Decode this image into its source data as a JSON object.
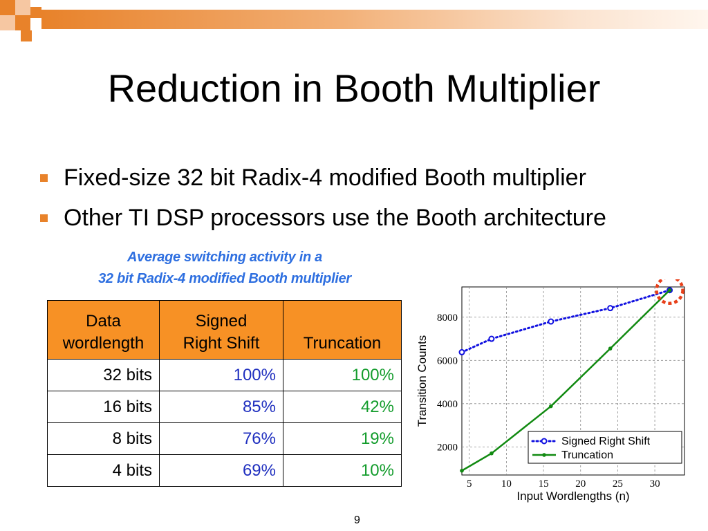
{
  "slide": {
    "title": "Reduction in Booth Multiplier",
    "bullets": [
      "Fixed-size 32 bit Radix-4 modified Booth multiplier",
      "Other TI DSP processors use the Booth architecture"
    ],
    "caption_line1": "Average switching activity in a",
    "caption_line2": "32 bit Radix-4 modified Booth multiplier",
    "page_number": "9",
    "accent_color": "#e8822a"
  },
  "table": {
    "headers": [
      {
        "line1": "Data",
        "line2": "wordlength"
      },
      {
        "line1": "Signed",
        "line2": "Right Shift"
      },
      {
        "line1": "",
        "line2": "Truncation"
      }
    ],
    "header_color": "#f79125",
    "rows": [
      {
        "wordlength": "32 bits",
        "signed_right_shift": "100%",
        "truncation": "100%"
      },
      {
        "wordlength": "16 bits",
        "signed_right_shift": "85%",
        "truncation": "42%"
      },
      {
        "wordlength": "8 bits",
        "signed_right_shift": "76%",
        "truncation": "19%"
      },
      {
        "wordlength": "4 bits",
        "signed_right_shift": "69%",
        "truncation": "10%"
      }
    ]
  },
  "chart_data": {
    "type": "line",
    "title": "",
    "xlabel": "Input Wordlengths (n)",
    "ylabel": "Transition Counts",
    "xlim": [
      4,
      34
    ],
    "ylim": [
      700,
      9400
    ],
    "xticks": [
      5,
      10,
      15,
      20,
      25,
      30
    ],
    "yticks": [
      2000,
      4000,
      6000,
      8000
    ],
    "grid": true,
    "legend_position": "bottom-right",
    "series": [
      {
        "name": "Signed Right Shift",
        "color": "#1010e0",
        "style": "dotted",
        "marker": "circle",
        "x": [
          4,
          8,
          16,
          24,
          32
        ],
        "y": [
          6380,
          7000,
          7800,
          8420,
          9250
        ]
      },
      {
        "name": "Truncation",
        "color": "#118a11",
        "style": "solid",
        "marker": "dot",
        "x": [
          4,
          8,
          16,
          24,
          32
        ],
        "y": [
          900,
          1700,
          3880,
          6550,
          9250
        ]
      }
    ],
    "highlight": {
      "x": 32,
      "y": 9250,
      "color": "#e8401a"
    }
  }
}
